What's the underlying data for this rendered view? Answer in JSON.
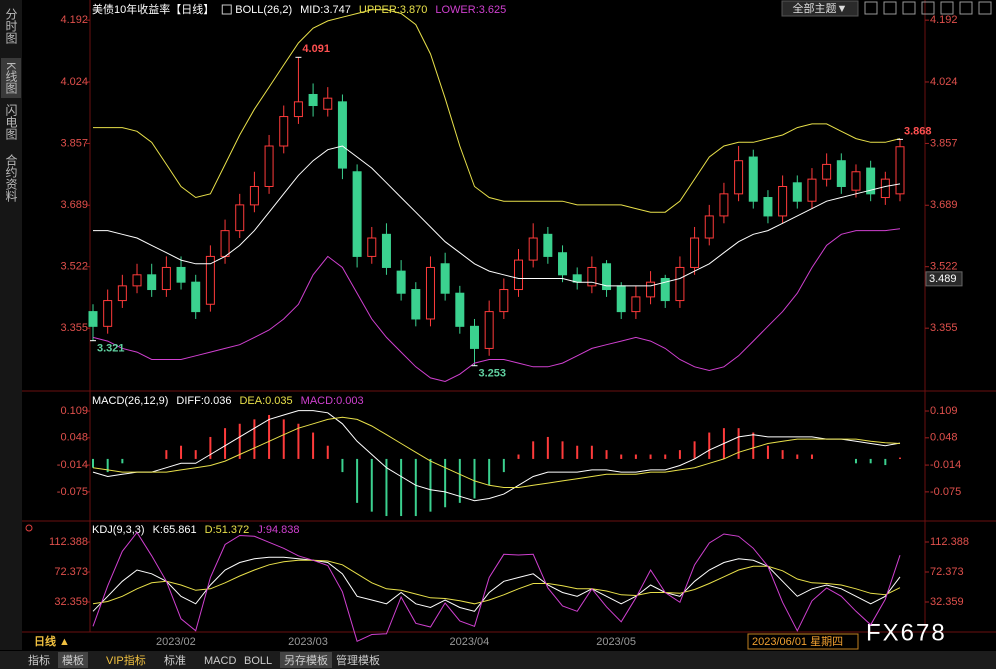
{
  "chart_data": [
    {
      "type": "candlestick",
      "title": "美债10年收益率【日线】",
      "indicator": "BOLL(26,2)",
      "categories": [
        null,
        null,
        null,
        null,
        null,
        null,
        "2023/02",
        null,
        null,
        null,
        null,
        null,
        null,
        null,
        null,
        "2023/03",
        null,
        null,
        null,
        null,
        null,
        null,
        null,
        null,
        null,
        null,
        "2023/04",
        null,
        null,
        null,
        null,
        null,
        null,
        null,
        null,
        null,
        "2023/05",
        null,
        null,
        null,
        null,
        null,
        null,
        null,
        null,
        null,
        null,
        null,
        null,
        null,
        null,
        null,
        null,
        null,
        null,
        null
      ],
      "open": [
        3.4,
        3.36,
        3.43,
        3.47,
        3.5,
        3.46,
        3.52,
        3.48,
        3.42,
        3.55,
        3.62,
        3.69,
        3.74,
        3.85,
        3.93,
        3.99,
        3.95,
        3.97,
        3.78,
        3.55,
        3.61,
        3.51,
        3.46,
        3.38,
        3.53,
        3.45,
        3.36,
        3.3,
        3.4,
        3.46,
        3.54,
        3.61,
        3.56,
        3.5,
        3.47,
        3.53,
        3.47,
        3.4,
        3.44,
        3.49,
        3.43,
        3.52,
        3.6,
        3.66,
        3.72,
        3.82,
        3.71,
        3.66,
        3.75,
        3.7,
        3.76,
        3.81,
        3.73,
        3.79,
        3.71,
        3.72
      ],
      "high": [
        3.42,
        3.46,
        3.5,
        3.53,
        3.53,
        3.55,
        3.55,
        3.5,
        3.58,
        3.65,
        3.72,
        3.78,
        3.88,
        3.96,
        4.091,
        4.02,
        4.01,
        3.99,
        3.8,
        3.63,
        3.64,
        3.54,
        3.48,
        3.55,
        3.56,
        3.47,
        3.38,
        3.43,
        3.49,
        3.57,
        3.64,
        3.63,
        3.58,
        3.52,
        3.55,
        3.54,
        3.48,
        3.47,
        3.51,
        3.5,
        3.55,
        3.63,
        3.69,
        3.75,
        3.85,
        3.84,
        3.73,
        3.77,
        3.77,
        3.79,
        3.83,
        3.83,
        3.8,
        3.81,
        3.78,
        3.868
      ],
      "low": [
        3.321,
        3.34,
        3.41,
        3.45,
        3.44,
        3.44,
        3.46,
        3.38,
        3.4,
        3.53,
        3.6,
        3.67,
        3.72,
        3.83,
        3.91,
        3.93,
        3.93,
        3.76,
        3.52,
        3.53,
        3.5,
        3.43,
        3.36,
        3.36,
        3.43,
        3.34,
        3.253,
        3.28,
        3.38,
        3.44,
        3.52,
        3.53,
        3.48,
        3.46,
        3.45,
        3.44,
        3.38,
        3.38,
        3.42,
        3.41,
        3.41,
        3.5,
        3.58,
        3.64,
        3.7,
        3.68,
        3.64,
        3.64,
        3.68,
        3.68,
        3.74,
        3.72,
        3.71,
        3.7,
        3.69,
        3.7
      ],
      "close": [
        3.36,
        3.43,
        3.47,
        3.5,
        3.46,
        3.52,
        3.48,
        3.4,
        3.55,
        3.62,
        3.69,
        3.74,
        3.85,
        3.93,
        3.97,
        3.96,
        3.98,
        3.79,
        3.55,
        3.6,
        3.52,
        3.45,
        3.38,
        3.52,
        3.45,
        3.36,
        3.3,
        3.4,
        3.46,
        3.54,
        3.6,
        3.55,
        3.5,
        3.48,
        3.52,
        3.46,
        3.4,
        3.44,
        3.48,
        3.43,
        3.52,
        3.6,
        3.66,
        3.72,
        3.81,
        3.7,
        3.66,
        3.74,
        3.7,
        3.76,
        3.8,
        3.74,
        3.78,
        3.72,
        3.76,
        3.848
      ],
      "up_color": "#ff3b3b",
      "down_color": "#3bd18f",
      "series": [
        {
          "name": "MID:3.747",
          "color": "#ffffff",
          "values": [
            3.62,
            3.62,
            3.61,
            3.6,
            3.58,
            3.56,
            3.54,
            3.53,
            3.53,
            3.55,
            3.58,
            3.62,
            3.67,
            3.72,
            3.77,
            3.81,
            3.84,
            3.85,
            3.82,
            3.79,
            3.75,
            3.71,
            3.67,
            3.63,
            3.59,
            3.56,
            3.53,
            3.51,
            3.5,
            3.49,
            3.49,
            3.49,
            3.49,
            3.48,
            3.48,
            3.47,
            3.47,
            3.47,
            3.47,
            3.48,
            3.49,
            3.51,
            3.53,
            3.56,
            3.59,
            3.61,
            3.62,
            3.64,
            3.66,
            3.68,
            3.7,
            3.71,
            3.72,
            3.73,
            3.74,
            3.747
          ]
        },
        {
          "name": "UPPER:3.870",
          "color": "#e8e04a",
          "values": [
            3.9,
            3.9,
            3.9,
            3.89,
            3.86,
            3.8,
            3.74,
            3.71,
            3.72,
            3.8,
            3.88,
            3.95,
            4.01,
            4.07,
            4.13,
            4.17,
            4.19,
            4.2,
            4.21,
            4.22,
            4.22,
            4.21,
            4.18,
            4.1,
            3.98,
            3.85,
            3.74,
            3.71,
            3.7,
            3.7,
            3.7,
            3.7,
            3.7,
            3.69,
            3.69,
            3.69,
            3.69,
            3.68,
            3.67,
            3.67,
            3.7,
            3.76,
            3.82,
            3.85,
            3.86,
            3.86,
            3.87,
            3.88,
            3.9,
            3.91,
            3.91,
            3.89,
            3.87,
            3.86,
            3.86,
            3.87
          ]
        },
        {
          "name": "LOWER:3.625",
          "color": "#d040d0",
          "values": [
            3.33,
            3.32,
            3.3,
            3.29,
            3.27,
            3.27,
            3.27,
            3.28,
            3.29,
            3.3,
            3.31,
            3.33,
            3.35,
            3.38,
            3.42,
            3.5,
            3.55,
            3.52,
            3.45,
            3.38,
            3.33,
            3.29,
            3.25,
            3.22,
            3.21,
            3.23,
            3.26,
            3.27,
            3.27,
            3.26,
            3.25,
            3.25,
            3.26,
            3.28,
            3.3,
            3.31,
            3.32,
            3.33,
            3.32,
            3.3,
            3.27,
            3.25,
            3.24,
            3.25,
            3.28,
            3.32,
            3.36,
            3.4,
            3.45,
            3.52,
            3.58,
            3.61,
            3.62,
            3.62,
            3.62,
            3.625
          ]
        }
      ],
      "annotations": [
        4.091,
        3.321,
        3.253,
        3.868
      ],
      "cursor_value": 3.489,
      "ylim": [
        3.187,
        4.225
      ],
      "yticks": [
        4.192,
        4.024,
        3.857,
        3.689,
        3.522,
        3.355
      ]
    },
    {
      "type": "macd",
      "title": "MACD(26,12,9)",
      "up_color": "#ff3b3b",
      "down_color": "#3bd18f",
      "series": [
        {
          "name": "DIFF:0.036",
          "color": "#ffffff",
          "values": [
            -0.03,
            -0.04,
            -0.035,
            -0.03,
            -0.03,
            -0.02,
            -0.01,
            -0.01,
            0.01,
            0.03,
            0.05,
            0.07,
            0.09,
            0.1,
            0.11,
            0.11,
            0.105,
            0.08,
            0.04,
            0.01,
            -0.02,
            -0.04,
            -0.06,
            -0.07,
            -0.075,
            -0.085,
            -0.095,
            -0.09,
            -0.08,
            -0.06,
            -0.04,
            -0.03,
            -0.03,
            -0.03,
            -0.025,
            -0.025,
            -0.03,
            -0.03,
            -0.025,
            -0.025,
            -0.015,
            0.0,
            0.02,
            0.035,
            0.05,
            0.055,
            0.05,
            0.05,
            0.05,
            0.05,
            0.045,
            0.045,
            0.04,
            0.035,
            0.03,
            0.036
          ]
        },
        {
          "name": "DEA:0.035",
          "color": "#e8e04a",
          "values": [
            -0.02,
            -0.025,
            -0.03,
            -0.03,
            -0.03,
            -0.03,
            -0.025,
            -0.02,
            -0.015,
            -0.005,
            0.01,
            0.025,
            0.04,
            0.055,
            0.07,
            0.08,
            0.09,
            0.095,
            0.09,
            0.075,
            0.055,
            0.035,
            0.015,
            -0.005,
            -0.02,
            -0.035,
            -0.05,
            -0.06,
            -0.065,
            -0.065,
            -0.06,
            -0.055,
            -0.05,
            -0.045,
            -0.04,
            -0.035,
            -0.035,
            -0.035,
            -0.03,
            -0.03,
            -0.025,
            -0.02,
            -0.01,
            0.0,
            0.015,
            0.025,
            0.035,
            0.04,
            0.045,
            0.045,
            0.045,
            0.045,
            0.045,
            0.04,
            0.037,
            0.035
          ]
        },
        {
          "name": "MACD:0.003",
          "color": "#d040d0",
          "type": "bar",
          "values": [
            -0.02,
            -0.03,
            -0.01,
            0,
            0,
            0.02,
            0.03,
            0.02,
            0.05,
            0.07,
            0.08,
            0.09,
            0.1,
            0.09,
            0.08,
            0.06,
            0.03,
            -0.03,
            -0.1,
            -0.12,
            -0.13,
            -0.13,
            -0.13,
            -0.12,
            -0.11,
            -0.1,
            -0.09,
            -0.06,
            -0.03,
            0.01,
            0.04,
            0.05,
            0.04,
            0.03,
            0.03,
            0.02,
            0.01,
            0.01,
            0.01,
            0.01,
            0.02,
            0.04,
            0.06,
            0.07,
            0.07,
            0.06,
            0.03,
            0.02,
            0.01,
            0.01,
            0,
            0,
            -0.01,
            -0.01,
            -0.014,
            0.003
          ]
        }
      ],
      "ylim": [
        -0.139,
        0.15
      ],
      "yticks": [
        0.109,
        0.048,
        -0.014,
        -0.075
      ]
    },
    {
      "type": "line",
      "title": "KDJ(9,3,3)",
      "series": [
        {
          "name": "K:65.861",
          "color": "#ffffff",
          "values": [
            20,
            40,
            60,
            75,
            70,
            60,
            40,
            30,
            55,
            75,
            85,
            90,
            92,
            92,
            90,
            88,
            85,
            70,
            40,
            35,
            30,
            45,
            30,
            25,
            35,
            25,
            20,
            45,
            60,
            65,
            70,
            55,
            45,
            40,
            50,
            40,
            30,
            40,
            55,
            45,
            40,
            60,
            75,
            85,
            90,
            88,
            80,
            60,
            40,
            50,
            55,
            50,
            40,
            30,
            40,
            65.861
          ]
        },
        {
          "name": "D:51.372",
          "color": "#e8e04a",
          "values": [
            30,
            33,
            40,
            50,
            58,
            60,
            55,
            48,
            50,
            58,
            67,
            75,
            82,
            86,
            88,
            88,
            87,
            82,
            70,
            58,
            50,
            48,
            43,
            38,
            37,
            34,
            30,
            35,
            42,
            50,
            57,
            57,
            54,
            50,
            50,
            47,
            42,
            41,
            45,
            45,
            44,
            49,
            57,
            66,
            75,
            80,
            80,
            74,
            63,
            58,
            57,
            55,
            50,
            44,
            42,
            51.372
          ]
        },
        {
          "name": "J:94.838",
          "color": "#d040d0",
          "values": [
            0,
            54,
            100,
            125,
            94,
            60,
            10,
            -6,
            65,
            109,
            121,
            120,
            112,
            104,
            94,
            88,
            81,
            46,
            -20,
            -11,
            -10,
            39,
            4,
            -1,
            31,
            7,
            0,
            65,
            96,
            95,
            96,
            51,
            27,
            20,
            50,
            26,
            6,
            38,
            75,
            45,
            32,
            82,
            111,
            123,
            120,
            104,
            80,
            32,
            -6,
            34,
            51,
            40,
            20,
            2,
            36,
            94.838
          ]
        }
      ],
      "ylim": [
        -7.66,
        139.07
      ],
      "yticks": [
        112.388,
        72.373,
        32.359
      ]
    }
  ],
  "ui": {
    "sidebar": [
      "分时图",
      "K线图",
      "闪电图",
      "合约资料"
    ],
    "theme_button": "全部主题▼",
    "period": "日线 ▲",
    "cursor_date": "2023/06/01 星期四",
    "watermark": "FX678",
    "toolbar": [
      "指标",
      "模板",
      "VIP指标",
      "标准",
      "MACD",
      "BOLL",
      "另存模板",
      "管理模板"
    ]
  }
}
